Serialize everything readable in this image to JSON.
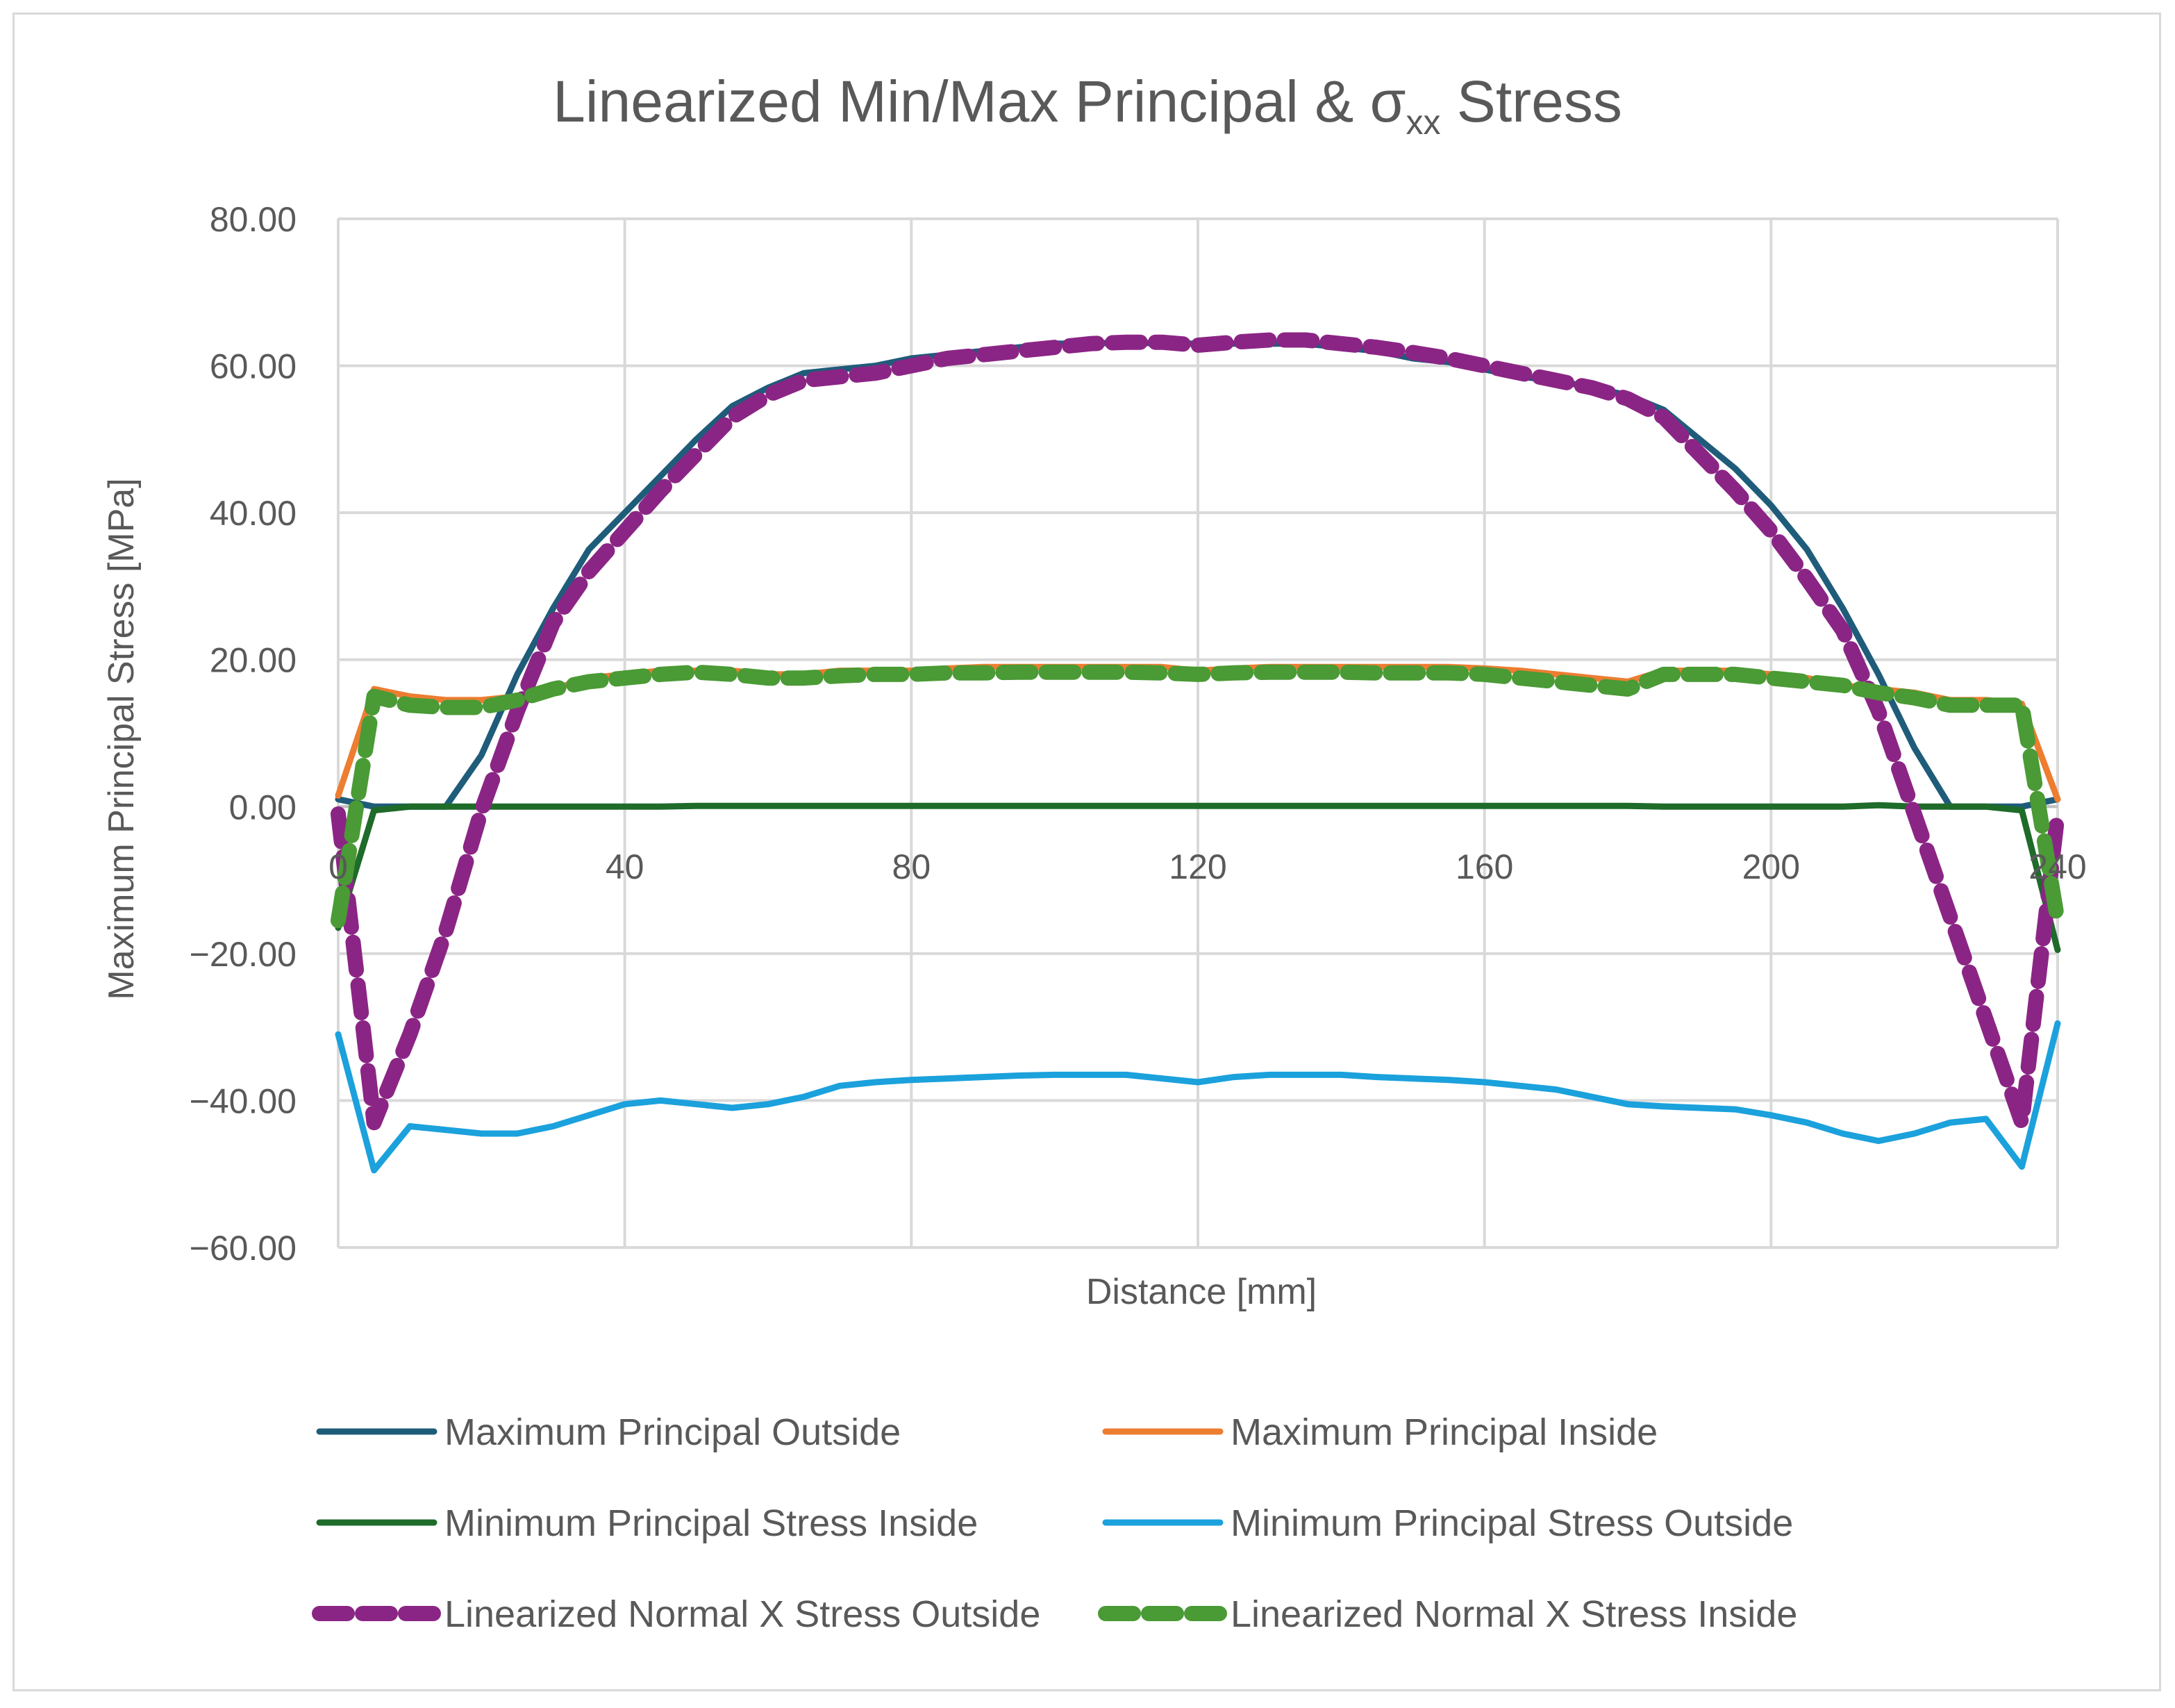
{
  "chart_data": {
    "type": "line",
    "title": "Linearized Min/Max Principal & σxx Stress",
    "title_main": "Linearized Min/Max Principal & σ",
    "title_subscript": "xx",
    "title_tail": " Stress",
    "xlabel": "Distance [mm]",
    "ylabel": "Maximum Principal Stress [MPa]",
    "xlim": [
      0,
      240
    ],
    "ylim": [
      -60,
      80
    ],
    "xticks": [
      "0",
      "40",
      "80",
      "120",
      "160",
      "200",
      "240"
    ],
    "xtick_values": [
      0,
      40,
      80,
      120,
      160,
      200,
      240
    ],
    "yticks": [
      "80.00",
      "60.00",
      "40.00",
      "20.00",
      "0.00",
      "−20.00",
      "−40.00",
      "−60.00"
    ],
    "ytick_values": [
      80,
      60,
      40,
      20,
      0,
      -20,
      -40,
      -60
    ],
    "grid": true,
    "legend_position": "bottom",
    "x": [
      0,
      5,
      10,
      15,
      20,
      25,
      30,
      35,
      40,
      45,
      50,
      55,
      60,
      65,
      70,
      75,
      80,
      85,
      90,
      95,
      100,
      105,
      110,
      115,
      120,
      125,
      130,
      135,
      140,
      145,
      150,
      155,
      160,
      165,
      170,
      175,
      180,
      185,
      190,
      195,
      200,
      205,
      210,
      215,
      220,
      225,
      230,
      235,
      240
    ],
    "series": [
      {
        "name": "Maximum Principal Outside",
        "color": "#1f5c7a",
        "dashed": false,
        "values": [
          1,
          0,
          0,
          0,
          7,
          18,
          27,
          35,
          40,
          45,
          50,
          54.5,
          57,
          59,
          59.5,
          60,
          61,
          61.5,
          62,
          62.5,
          63,
          63,
          63.2,
          63,
          63,
          63,
          63,
          63,
          62.5,
          62,
          61,
          60.5,
          59.5,
          58.5,
          58,
          57,
          56,
          54,
          50,
          46,
          41,
          35,
          27,
          18,
          8,
          0,
          0,
          0,
          1
        ]
      },
      {
        "name": "Maximum Principal Inside",
        "color": "#ed7d31",
        "dashed": false,
        "values": [
          1.5,
          16,
          15,
          14.5,
          14.5,
          15,
          16,
          17.5,
          18,
          18.5,
          18.5,
          18.5,
          18,
          18,
          18.5,
          18.5,
          18.5,
          18.8,
          19,
          19,
          19,
          19,
          19,
          19,
          18.5,
          18.8,
          19,
          19,
          19,
          19,
          19,
          19,
          18.8,
          18.5,
          18,
          17.5,
          17,
          18.5,
          18.5,
          18.5,
          18,
          17.5,
          16.5,
          16,
          15.5,
          14.5,
          14.5,
          14,
          1
        ]
      },
      {
        "name": "Minimum Principal Stress Inside",
        "color": "#1e6b2a",
        "dashed": false,
        "values": [
          -16.5,
          -0.5,
          0,
          0,
          0,
          0,
          0,
          0,
          0,
          0,
          0.1,
          0.1,
          0.1,
          0.1,
          0.1,
          0.1,
          0.1,
          0.1,
          0.1,
          0.1,
          0.1,
          0.1,
          0.1,
          0.1,
          0.1,
          0.1,
          0.1,
          0.1,
          0.1,
          0.1,
          0.1,
          0.1,
          0.1,
          0.1,
          0.1,
          0.1,
          0.1,
          0,
          0,
          0,
          0,
          0,
          0,
          0.2,
          0,
          0,
          0,
          -0.5,
          -19.5
        ]
      },
      {
        "name": "Minimum Principal Stress Outside",
        "color": "#1ba1dc",
        "dashed": false,
        "values": [
          -31,
          -49.5,
          -43.5,
          -44,
          -44.5,
          -44.5,
          -43.5,
          -42,
          -40.5,
          -40,
          -40.5,
          -41,
          -40.5,
          -39.5,
          -38,
          -37.5,
          -37.2,
          -37,
          -36.8,
          -36.6,
          -36.5,
          -36.5,
          -36.5,
          -37,
          -37.5,
          -36.8,
          -36.5,
          -36.5,
          -36.5,
          -36.8,
          -37,
          -37.2,
          -37.5,
          -38,
          -38.5,
          -39.5,
          -40.5,
          -40.8,
          -41,
          -41.2,
          -42,
          -43,
          -44.5,
          -45.5,
          -44.5,
          -43,
          -42.5,
          -49,
          -29.5
        ]
      },
      {
        "name": "Linearized Normal X Stress Outside",
        "color": "#8b2585",
        "dashed": true,
        "values": [
          -1,
          -43,
          -31,
          -17,
          -0.5,
          13,
          25,
          32,
          37.5,
          43,
          48,
          53,
          56,
          58,
          58.5,
          59,
          60,
          61,
          61.5,
          62,
          62.5,
          63,
          63.2,
          63.2,
          62.8,
          63.2,
          63.5,
          63.5,
          63,
          62.5,
          61.8,
          61,
          60,
          59,
          58,
          57,
          55.5,
          53,
          48,
          43,
          37.5,
          31,
          24,
          13,
          -1,
          -15,
          -29,
          -43,
          -1
        ]
      },
      {
        "name": "Linearized Normal X Stress Inside",
        "color": "#4a9a35",
        "dashed": true,
        "values": [
          -15.5,
          15,
          13.8,
          13.5,
          13.5,
          14.5,
          16,
          17,
          17.5,
          18,
          18.3,
          18,
          17.5,
          17.5,
          17.8,
          18,
          18,
          18.2,
          18.2,
          18.3,
          18.3,
          18.3,
          18.3,
          18.2,
          18,
          18.2,
          18.3,
          18.3,
          18.3,
          18.2,
          18.2,
          18.2,
          18,
          17.5,
          17,
          16.5,
          16,
          18,
          18,
          18,
          17.5,
          17,
          16.5,
          15.5,
          14.8,
          13.8,
          13.8,
          13.8,
          -15.5
        ]
      }
    ]
  }
}
